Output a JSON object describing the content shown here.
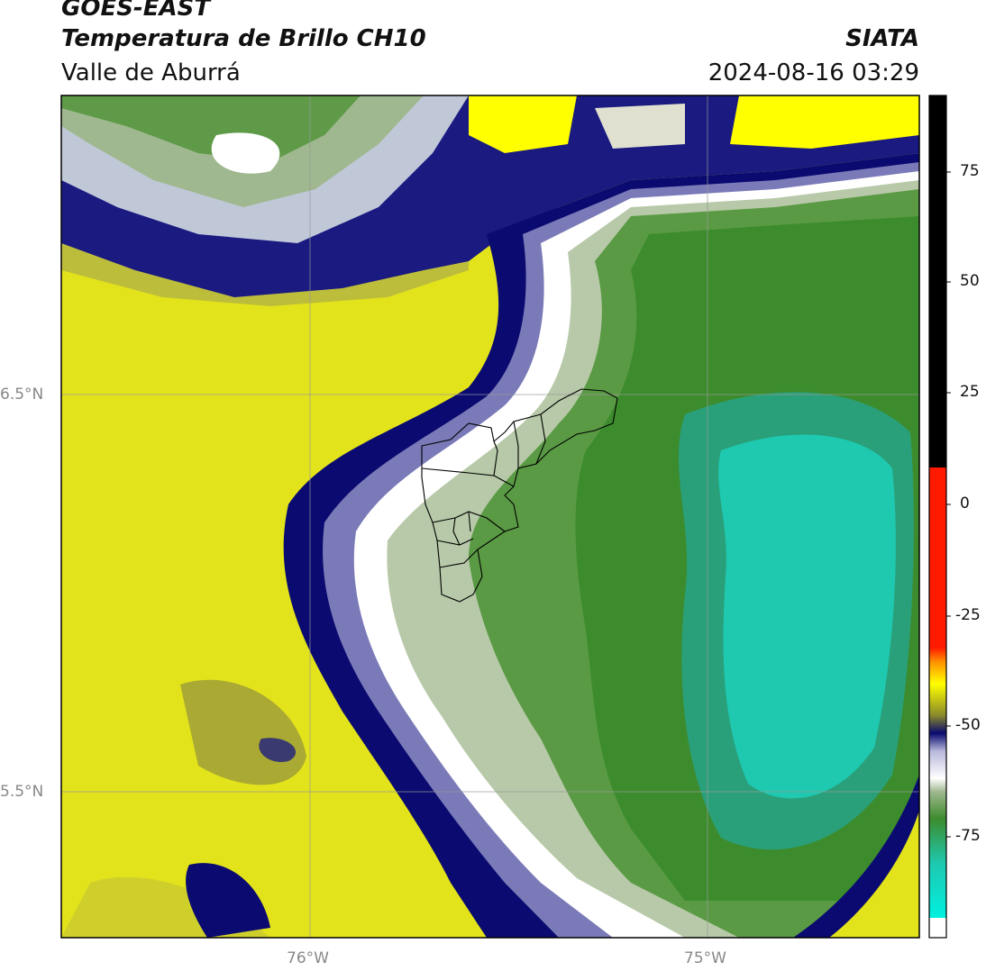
{
  "header": {
    "satellite": "GOES-EAST",
    "product": "Temperatura de Brillo CH10",
    "region": "Valle de Aburrá",
    "agency": "SIATA",
    "datetime": "2024-08-16 03:29"
  },
  "axes": {
    "lat_ticks": [
      "6.5°N",
      "5.5°N"
    ],
    "lon_ticks": [
      "76°W",
      "75°W"
    ]
  },
  "colorbar": {
    "ticks": [
      "75",
      "50",
      "25",
      "0",
      "-25",
      "-50",
      "-75"
    ],
    "colors": {
      "black": "#000000",
      "red": "#ff1a00",
      "orange": "#ff8c00",
      "yellow": "#ffff00",
      "olive": "#8a8a2a",
      "navy": "#0a0a70",
      "lavender": "#b8b8dc",
      "white": "#ffffff",
      "sage": "#9fb88f",
      "green": "#3c8c2d",
      "teal": "#1ec9b0",
      "cyan": "#00f0e0"
    }
  }
}
